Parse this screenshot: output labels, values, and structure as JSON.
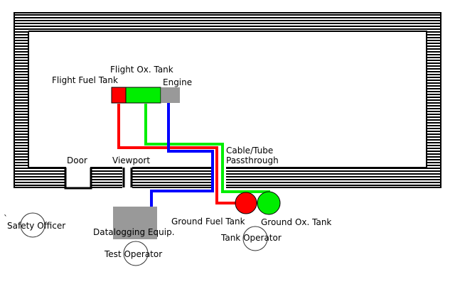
{
  "colors": {
    "background": "#ffffff",
    "wall": "#000000",
    "fuel": "#ff0000",
    "oxidizer": "#00ee00",
    "data_cable": "#0000ff",
    "equipment": "#999999",
    "person_outline": "#333333"
  },
  "labels": {
    "flight_ox_tank": "Flight Ox. Tank",
    "flight_fuel_tank": "Flight Fuel Tank",
    "engine": "Engine",
    "door": "Door",
    "viewport": "Viewport",
    "passthrough": "Cable/Tube\nPassthrough",
    "ground_fuel_tank": "Ground Fuel Tank",
    "ground_ox_tank": "Ground Ox. Tank",
    "tank_operator": "Tank Operator",
    "datalogging_equip": "Datalogging Equip.",
    "test_operator": "Test Operator",
    "safety_officer": "Safety Officer",
    "stray_mark": "`"
  }
}
